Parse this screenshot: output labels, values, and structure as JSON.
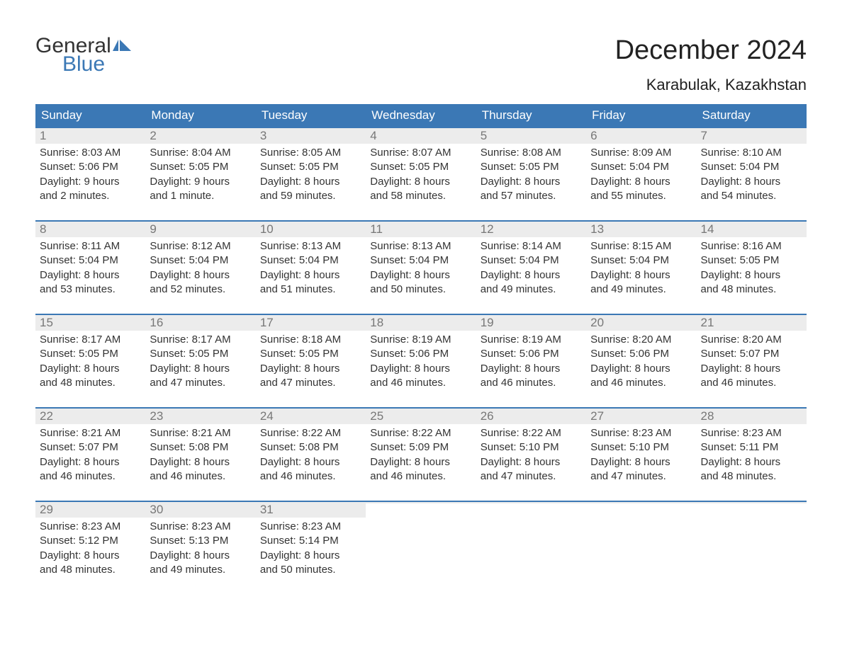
{
  "brand": {
    "word1": "General",
    "word2": "Blue",
    "flag_color": "#3b78b5"
  },
  "title": "December 2024",
  "location": "Karabulak, Kazakhstan",
  "colors": {
    "header_bg": "#3b78b5",
    "header_text": "#ffffff",
    "daynum_bg": "#ececec",
    "daynum_text": "#777777",
    "body_text": "#333333",
    "week_border": "#3b78b5",
    "page_bg": "#ffffff"
  },
  "typography": {
    "title_size": 38,
    "location_size": 22,
    "header_size": 17,
    "body_size": 15
  },
  "day_names": [
    "Sunday",
    "Monday",
    "Tuesday",
    "Wednesday",
    "Thursday",
    "Friday",
    "Saturday"
  ],
  "weeks": [
    [
      {
        "n": "1",
        "l1": "Sunrise: 8:03 AM",
        "l2": "Sunset: 5:06 PM",
        "l3": "Daylight: 9 hours",
        "l4": "and 2 minutes."
      },
      {
        "n": "2",
        "l1": "Sunrise: 8:04 AM",
        "l2": "Sunset: 5:05 PM",
        "l3": "Daylight: 9 hours",
        "l4": "and 1 minute."
      },
      {
        "n": "3",
        "l1": "Sunrise: 8:05 AM",
        "l2": "Sunset: 5:05 PM",
        "l3": "Daylight: 8 hours",
        "l4": "and 59 minutes."
      },
      {
        "n": "4",
        "l1": "Sunrise: 8:07 AM",
        "l2": "Sunset: 5:05 PM",
        "l3": "Daylight: 8 hours",
        "l4": "and 58 minutes."
      },
      {
        "n": "5",
        "l1": "Sunrise: 8:08 AM",
        "l2": "Sunset: 5:05 PM",
        "l3": "Daylight: 8 hours",
        "l4": "and 57 minutes."
      },
      {
        "n": "6",
        "l1": "Sunrise: 8:09 AM",
        "l2": "Sunset: 5:04 PM",
        "l3": "Daylight: 8 hours",
        "l4": "and 55 minutes."
      },
      {
        "n": "7",
        "l1": "Sunrise: 8:10 AM",
        "l2": "Sunset: 5:04 PM",
        "l3": "Daylight: 8 hours",
        "l4": "and 54 minutes."
      }
    ],
    [
      {
        "n": "8",
        "l1": "Sunrise: 8:11 AM",
        "l2": "Sunset: 5:04 PM",
        "l3": "Daylight: 8 hours",
        "l4": "and 53 minutes."
      },
      {
        "n": "9",
        "l1": "Sunrise: 8:12 AM",
        "l2": "Sunset: 5:04 PM",
        "l3": "Daylight: 8 hours",
        "l4": "and 52 minutes."
      },
      {
        "n": "10",
        "l1": "Sunrise: 8:13 AM",
        "l2": "Sunset: 5:04 PM",
        "l3": "Daylight: 8 hours",
        "l4": "and 51 minutes."
      },
      {
        "n": "11",
        "l1": "Sunrise: 8:13 AM",
        "l2": "Sunset: 5:04 PM",
        "l3": "Daylight: 8 hours",
        "l4": "and 50 minutes."
      },
      {
        "n": "12",
        "l1": "Sunrise: 8:14 AM",
        "l2": "Sunset: 5:04 PM",
        "l3": "Daylight: 8 hours",
        "l4": "and 49 minutes."
      },
      {
        "n": "13",
        "l1": "Sunrise: 8:15 AM",
        "l2": "Sunset: 5:04 PM",
        "l3": "Daylight: 8 hours",
        "l4": "and 49 minutes."
      },
      {
        "n": "14",
        "l1": "Sunrise: 8:16 AM",
        "l2": "Sunset: 5:05 PM",
        "l3": "Daylight: 8 hours",
        "l4": "and 48 minutes."
      }
    ],
    [
      {
        "n": "15",
        "l1": "Sunrise: 8:17 AM",
        "l2": "Sunset: 5:05 PM",
        "l3": "Daylight: 8 hours",
        "l4": "and 48 minutes."
      },
      {
        "n": "16",
        "l1": "Sunrise: 8:17 AM",
        "l2": "Sunset: 5:05 PM",
        "l3": "Daylight: 8 hours",
        "l4": "and 47 minutes."
      },
      {
        "n": "17",
        "l1": "Sunrise: 8:18 AM",
        "l2": "Sunset: 5:05 PM",
        "l3": "Daylight: 8 hours",
        "l4": "and 47 minutes."
      },
      {
        "n": "18",
        "l1": "Sunrise: 8:19 AM",
        "l2": "Sunset: 5:06 PM",
        "l3": "Daylight: 8 hours",
        "l4": "and 46 minutes."
      },
      {
        "n": "19",
        "l1": "Sunrise: 8:19 AM",
        "l2": "Sunset: 5:06 PM",
        "l3": "Daylight: 8 hours",
        "l4": "and 46 minutes."
      },
      {
        "n": "20",
        "l1": "Sunrise: 8:20 AM",
        "l2": "Sunset: 5:06 PM",
        "l3": "Daylight: 8 hours",
        "l4": "and 46 minutes."
      },
      {
        "n": "21",
        "l1": "Sunrise: 8:20 AM",
        "l2": "Sunset: 5:07 PM",
        "l3": "Daylight: 8 hours",
        "l4": "and 46 minutes."
      }
    ],
    [
      {
        "n": "22",
        "l1": "Sunrise: 8:21 AM",
        "l2": "Sunset: 5:07 PM",
        "l3": "Daylight: 8 hours",
        "l4": "and 46 minutes."
      },
      {
        "n": "23",
        "l1": "Sunrise: 8:21 AM",
        "l2": "Sunset: 5:08 PM",
        "l3": "Daylight: 8 hours",
        "l4": "and 46 minutes."
      },
      {
        "n": "24",
        "l1": "Sunrise: 8:22 AM",
        "l2": "Sunset: 5:08 PM",
        "l3": "Daylight: 8 hours",
        "l4": "and 46 minutes."
      },
      {
        "n": "25",
        "l1": "Sunrise: 8:22 AM",
        "l2": "Sunset: 5:09 PM",
        "l3": "Daylight: 8 hours",
        "l4": "and 46 minutes."
      },
      {
        "n": "26",
        "l1": "Sunrise: 8:22 AM",
        "l2": "Sunset: 5:10 PM",
        "l3": "Daylight: 8 hours",
        "l4": "and 47 minutes."
      },
      {
        "n": "27",
        "l1": "Sunrise: 8:23 AM",
        "l2": "Sunset: 5:10 PM",
        "l3": "Daylight: 8 hours",
        "l4": "and 47 minutes."
      },
      {
        "n": "28",
        "l1": "Sunrise: 8:23 AM",
        "l2": "Sunset: 5:11 PM",
        "l3": "Daylight: 8 hours",
        "l4": "and 48 minutes."
      }
    ],
    [
      {
        "n": "29",
        "l1": "Sunrise: 8:23 AM",
        "l2": "Sunset: 5:12 PM",
        "l3": "Daylight: 8 hours",
        "l4": "and 48 minutes."
      },
      {
        "n": "30",
        "l1": "Sunrise: 8:23 AM",
        "l2": "Sunset: 5:13 PM",
        "l3": "Daylight: 8 hours",
        "l4": "and 49 minutes."
      },
      {
        "n": "31",
        "l1": "Sunrise: 8:23 AM",
        "l2": "Sunset: 5:14 PM",
        "l3": "Daylight: 8 hours",
        "l4": "and 50 minutes."
      },
      {
        "empty": true
      },
      {
        "empty": true
      },
      {
        "empty": true
      },
      {
        "empty": true
      }
    ]
  ]
}
